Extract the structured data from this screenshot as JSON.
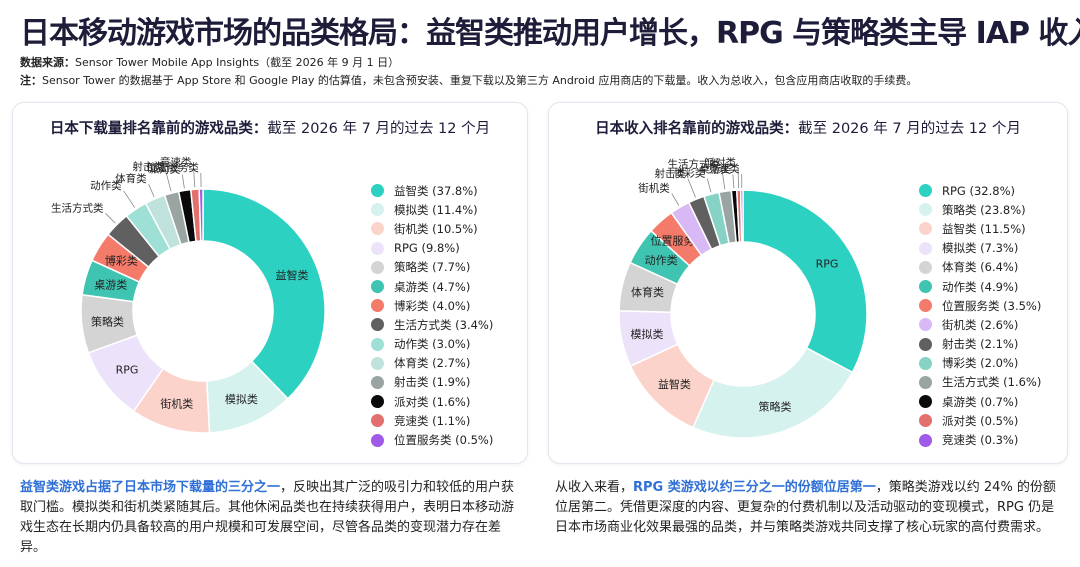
{
  "header": {
    "title": "日本移动游戏市场的品类格局：益智类推动用户增长，RPG 与策略类主导 IAP 收入",
    "source_label": "数据来源：",
    "source_text": "Sensor Tower Mobile App Insights（截至 2026 年 9 月 1 日）",
    "note_label": "注：",
    "note_text": "Sensor Tower 的数据基于 App Store 和 Google Play 的估算值，未包含预安装、重复下载以及第三方 Android 应用商店的下载量。收入为总收入，包含应用商店收取的手续费。"
  },
  "left_panel": {
    "title_bold": "日本下载量排名靠前的游戏品类：",
    "title_rest": "截至 2026 年 7 月的过去 12 个月"
  },
  "right_panel": {
    "title_bold": "日本收入排名靠前的游戏品类：",
    "title_rest": "截至 2026 年 7 月的过去 12 个月"
  },
  "chart_data": [
    {
      "type": "pie",
      "title": "日本下载量排名靠前的游戏品类：截至 2026 年 7 月的过去 12 个月",
      "style": "donut",
      "slices": [
        {
          "name": "益智类",
          "value": 37.8,
          "legend": "益智类 (37.8%)",
          "color": "#2dd1c2"
        },
        {
          "name": "模拟类",
          "value": 11.4,
          "legend": "模拟类 (11.4%)",
          "color": "#d6f2ee"
        },
        {
          "name": "街机类",
          "value": 10.5,
          "legend": "街机类 (10.5%)",
          "color": "#fbd3cb"
        },
        {
          "name": "RPG",
          "value": 9.8,
          "legend": "RPG (9.8%)",
          "color": "#ece3fb"
        },
        {
          "name": "策略类",
          "value": 7.7,
          "legend": "策略类 (7.7%)",
          "color": "#d4d4d4"
        },
        {
          "name": "桌游类",
          "value": 4.7,
          "legend": "桌游类 (4.7%)",
          "color": "#3fc4b2"
        },
        {
          "name": "博彩类",
          "value": 4.0,
          "legend": "博彩类 (4.0%)",
          "color": "#f47a6a"
        },
        {
          "name": "生活方式类",
          "value": 3.4,
          "legend": "生活方式类 (3.4%)",
          "color": "#606060"
        },
        {
          "name": "动作类",
          "value": 3.0,
          "legend": "动作类 (3.0%)",
          "color": "#9ee0d5"
        },
        {
          "name": "体育类",
          "value": 2.7,
          "legend": "体育类 (2.7%)",
          "color": "#bfe3dc"
        },
        {
          "name": "射击类",
          "value": 1.9,
          "legend": "射击类 (1.9%)",
          "color": "#9aa4a2"
        },
        {
          "name": "派对类",
          "value": 1.6,
          "legend": "派对类 (1.6%)",
          "color": "#0a0a0a"
        },
        {
          "name": "竞速类",
          "value": 1.1,
          "legend": "竞速类 (1.1%)",
          "color": "#e2706c"
        },
        {
          "name": "位置服务类",
          "value": 0.5,
          "legend": "位置服务类 (0.5%)",
          "color": "#a05ae8"
        }
      ]
    },
    {
      "type": "pie",
      "title": "日本收入排名靠前的游戏品类：截至 2026 年 7 月的过去 12 个月",
      "style": "donut",
      "slices": [
        {
          "name": "RPG",
          "value": 32.8,
          "legend": "RPG (32.8%)",
          "color": "#2dd1c2"
        },
        {
          "name": "策略类",
          "value": 23.8,
          "legend": "策略类 (23.8%)",
          "color": "#d6f2ee"
        },
        {
          "name": "益智类",
          "value": 11.5,
          "legend": "益智类 (11.5%)",
          "color": "#fbd3cb"
        },
        {
          "name": "模拟类",
          "value": 7.3,
          "legend": "模拟类 (7.3%)",
          "color": "#ece3fb"
        },
        {
          "name": "体育类",
          "value": 6.4,
          "legend": "体育类 (6.4%)",
          "color": "#d4d4d4"
        },
        {
          "name": "动作类",
          "value": 4.9,
          "legend": "动作类 (4.9%)",
          "color": "#3fc4b2"
        },
        {
          "name": "位置服务类",
          "value": 3.5,
          "legend": "位置服务类 (3.5%)",
          "color": "#f47a6a"
        },
        {
          "name": "街机类",
          "value": 2.6,
          "legend": "街机类 (2.6%)",
          "color": "#d9b8f6"
        },
        {
          "name": "射击类",
          "value": 2.1,
          "legend": "射击类 (2.1%)",
          "color": "#606060"
        },
        {
          "name": "博彩类",
          "value": 2.0,
          "legend": "博彩类 (2.0%)",
          "color": "#86d3c6"
        },
        {
          "name": "生活方式类",
          "value": 1.6,
          "legend": "生活方式类 (1.6%)",
          "color": "#9aa4a2"
        },
        {
          "name": "桌游类",
          "value": 0.7,
          "legend": "桌游类 (0.7%)",
          "color": "#0a0a0a"
        },
        {
          "name": "派对类",
          "value": 0.5,
          "legend": "派对类 (0.5%)",
          "color": "#e2706c"
        },
        {
          "name": "竞速类",
          "value": 0.3,
          "legend": "竞速类 (0.3%)",
          "color": "#a05ae8"
        }
      ]
    }
  ],
  "footer_left": {
    "highlight": "益智类游戏占据了日本市场下载量的三分之一",
    "text": "，反映出其广泛的吸引力和较低的用户获取门槛。模拟类和街机类紧随其后。其他休闲品类也在持续获得用户，表明日本移动游戏生态在长期内仍具备较高的用户规模和可发展空间，尽管各品类的变现潜力存在差异。"
  },
  "footer_right": {
    "text_before": "从收入来看，",
    "highlight": "RPG 类游戏以约三分之一的份额位居第一",
    "text": "，策略类游戏以约 24% 的份额位居第二。凭借更深度的内容、更复杂的付费机制以及活动驱动的变现模式，RPG 仍是日本市场商业化效果最强的品类，并与策略类游戏共同支撑了核心玩家的高付费需求。"
  }
}
